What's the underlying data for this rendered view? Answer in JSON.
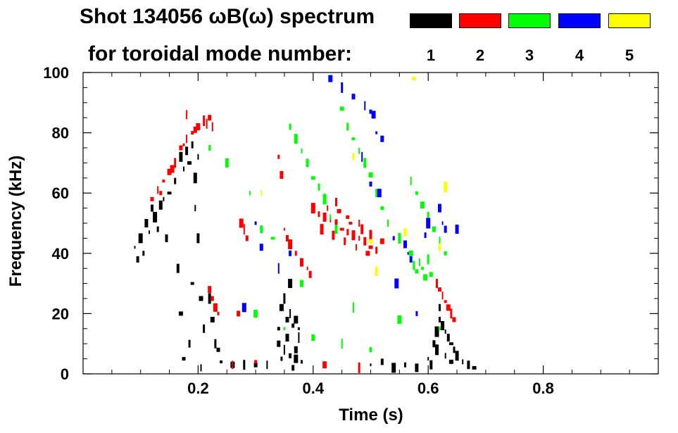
{
  "title": {
    "line1": "Shot 134056 ωB(ω) spectrum",
    "line2": "for toroidal mode number:"
  },
  "legend": [
    {
      "label": "1",
      "color": "#000000"
    },
    {
      "label": "2",
      "color": "#ff0000"
    },
    {
      "label": "3",
      "color": "#00ff00"
    },
    {
      "label": "4",
      "color": "#0000ff"
    },
    {
      "label": "5",
      "color": "#ffff00"
    }
  ],
  "chart_data": {
    "type": "scatter",
    "title": "Shot 134056 ωB(ω) spectrum",
    "xlabel": "Time (s)",
    "ylabel": "Frequency (kHz)",
    "xlim": [
      0.0,
      1.0
    ],
    "ylim": [
      0,
      100
    ],
    "x_ticks": [
      0.2,
      0.4,
      0.6,
      0.8
    ],
    "x_tick_labels": [
      "0.2",
      "0.4",
      "0.6",
      "0.8"
    ],
    "y_ticks": [
      0,
      20,
      40,
      60,
      80,
      100
    ],
    "y_tick_labels": [
      "0",
      "20",
      "40",
      "60",
      "80",
      "100"
    ],
    "series": [
      {
        "name": "n=1",
        "color": "#000000",
        "points": [
          [
            0.09,
            42
          ],
          [
            0.095,
            38
          ],
          [
            0.1,
            45
          ],
          [
            0.105,
            40
          ],
          [
            0.11,
            50
          ],
          [
            0.115,
            47
          ],
          [
            0.12,
            55
          ],
          [
            0.125,
            52
          ],
          [
            0.13,
            48
          ],
          [
            0.135,
            56
          ],
          [
            0.14,
            58
          ],
          [
            0.145,
            45
          ],
          [
            0.15,
            60
          ],
          [
            0.16,
            64
          ],
          [
            0.17,
            72
          ],
          [
            0.175,
            68
          ],
          [
            0.18,
            74
          ],
          [
            0.185,
            70
          ],
          [
            0.19,
            76
          ],
          [
            0.195,
            65
          ],
          [
            0.2,
            72
          ],
          [
            0.165,
            35
          ],
          [
            0.17,
            20
          ],
          [
            0.185,
            10
          ],
          [
            0.19,
            30
          ],
          [
            0.195,
            55
          ],
          [
            0.2,
            45
          ],
          [
            0.205,
            25
          ],
          [
            0.21,
            15
          ],
          [
            0.175,
            5
          ],
          [
            0.205,
            2
          ],
          [
            0.22,
            25
          ],
          [
            0.225,
            18
          ],
          [
            0.23,
            10
          ],
          [
            0.235,
            8
          ],
          [
            0.23,
            22
          ],
          [
            0.24,
            4
          ],
          [
            0.26,
            3
          ],
          [
            0.28,
            3
          ],
          [
            0.3,
            3
          ],
          [
            0.32,
            3
          ],
          [
            0.34,
            15
          ],
          [
            0.345,
            22
          ],
          [
            0.35,
            25
          ],
          [
            0.355,
            18
          ],
          [
            0.36,
            20
          ],
          [
            0.365,
            16
          ],
          [
            0.37,
            18
          ],
          [
            0.375,
            15
          ],
          [
            0.34,
            10
          ],
          [
            0.35,
            8
          ],
          [
            0.36,
            6
          ],
          [
            0.37,
            5
          ],
          [
            0.38,
            4
          ],
          [
            0.37,
            8
          ],
          [
            0.375,
            12
          ],
          [
            0.365,
            2
          ],
          [
            0.36,
            30
          ],
          [
            0.345,
            5
          ],
          [
            0.355,
            12
          ],
          [
            0.5,
            3
          ],
          [
            0.52,
            4
          ],
          [
            0.54,
            2
          ],
          [
            0.56,
            3
          ],
          [
            0.58,
            2
          ],
          [
            0.6,
            5
          ],
          [
            0.61,
            10
          ],
          [
            0.615,
            14
          ],
          [
            0.62,
            18
          ],
          [
            0.625,
            16
          ],
          [
            0.63,
            14
          ],
          [
            0.635,
            12
          ],
          [
            0.64,
            10
          ],
          [
            0.645,
            8
          ],
          [
            0.65,
            6
          ],
          [
            0.66,
            4
          ],
          [
            0.67,
            3
          ],
          [
            0.68,
            2
          ],
          [
            0.62,
            22
          ],
          [
            0.615,
            8
          ],
          [
            0.63,
            6
          ],
          [
            0.605,
            3
          ],
          [
            0.64,
            4
          ]
        ]
      },
      {
        "name": "n=2",
        "color": "#ff0000",
        "points": [
          [
            0.12,
            58
          ],
          [
            0.13,
            61
          ],
          [
            0.14,
            64
          ],
          [
            0.15,
            67
          ],
          [
            0.16,
            70
          ],
          [
            0.17,
            75
          ],
          [
            0.18,
            78
          ],
          [
            0.19,
            80
          ],
          [
            0.2,
            82
          ],
          [
            0.21,
            84
          ],
          [
            0.22,
            85
          ],
          [
            0.225,
            82
          ],
          [
            0.135,
            60
          ],
          [
            0.155,
            68
          ],
          [
            0.175,
            76
          ],
          [
            0.195,
            81
          ],
          [
            0.215,
            83
          ],
          [
            0.225,
            25
          ],
          [
            0.23,
            22
          ],
          [
            0.235,
            20
          ],
          [
            0.22,
            28
          ],
          [
            0.28,
            48
          ],
          [
            0.285,
            45
          ],
          [
            0.275,
            50
          ],
          [
            0.34,
            72
          ],
          [
            0.345,
            66
          ],
          [
            0.35,
            48
          ],
          [
            0.355,
            45
          ],
          [
            0.36,
            43
          ],
          [
            0.37,
            40
          ],
          [
            0.38,
            37
          ],
          [
            0.39,
            35
          ],
          [
            0.395,
            33
          ],
          [
            0.4,
            55
          ],
          [
            0.41,
            53
          ],
          [
            0.42,
            52
          ],
          [
            0.43,
            51
          ],
          [
            0.44,
            50
          ],
          [
            0.45,
            48
          ],
          [
            0.46,
            47
          ],
          [
            0.47,
            46
          ],
          [
            0.48,
            45
          ],
          [
            0.49,
            44
          ],
          [
            0.5,
            42
          ],
          [
            0.51,
            41
          ],
          [
            0.415,
            48
          ],
          [
            0.425,
            55
          ],
          [
            0.435,
            46
          ],
          [
            0.445,
            54
          ],
          [
            0.455,
            44
          ],
          [
            0.465,
            50
          ],
          [
            0.475,
            42
          ],
          [
            0.485,
            48
          ],
          [
            0.495,
            40
          ],
          [
            0.44,
            57
          ],
          [
            0.46,
            52
          ],
          [
            0.48,
            50
          ],
          [
            0.5,
            46
          ],
          [
            0.52,
            44
          ],
          [
            0.615,
            30
          ],
          [
            0.62,
            28
          ],
          [
            0.625,
            26
          ],
          [
            0.63,
            24
          ],
          [
            0.635,
            22
          ],
          [
            0.64,
            20
          ],
          [
            0.645,
            18
          ],
          [
            0.26,
            3
          ],
          [
            0.3,
            4
          ],
          [
            0.42,
            3
          ],
          [
            0.48,
            2
          ],
          [
            0.27,
            20
          ],
          [
            0.18,
            86
          ]
        ]
      },
      {
        "name": "n=3",
        "color": "#00ff00",
        "points": [
          [
            0.22,
            75
          ],
          [
            0.25,
            70
          ],
          [
            0.29,
            60
          ],
          [
            0.31,
            48
          ],
          [
            0.33,
            45
          ],
          [
            0.36,
            82
          ],
          [
            0.37,
            78
          ],
          [
            0.38,
            74
          ],
          [
            0.39,
            70
          ],
          [
            0.4,
            65
          ],
          [
            0.41,
            62
          ],
          [
            0.42,
            58
          ],
          [
            0.43,
            52
          ],
          [
            0.44,
            48
          ],
          [
            0.45,
            88
          ],
          [
            0.46,
            82
          ],
          [
            0.47,
            78
          ],
          [
            0.48,
            74
          ],
          [
            0.49,
            70
          ],
          [
            0.5,
            66
          ],
          [
            0.51,
            60
          ],
          [
            0.52,
            55
          ],
          [
            0.53,
            50
          ],
          [
            0.55,
            45
          ],
          [
            0.57,
            40
          ],
          [
            0.575,
            36
          ],
          [
            0.58,
            34
          ],
          [
            0.585,
            37
          ],
          [
            0.59,
            35
          ],
          [
            0.595,
            32
          ],
          [
            0.6,
            38
          ],
          [
            0.605,
            33
          ],
          [
            0.57,
            64
          ],
          [
            0.58,
            60
          ],
          [
            0.59,
            56
          ],
          [
            0.6,
            52
          ],
          [
            0.61,
            48
          ],
          [
            0.62,
            44
          ],
          [
            0.63,
            40
          ],
          [
            0.3,
            20
          ],
          [
            0.35,
            15
          ],
          [
            0.4,
            12
          ],
          [
            0.45,
            10
          ],
          [
            0.5,
            8
          ],
          [
            0.55,
            18
          ],
          [
            0.62,
            15
          ],
          [
            0.38,
            30
          ],
          [
            0.47,
            22
          ]
        ]
      },
      {
        "name": "n=4",
        "color": "#0000ff",
        "points": [
          [
            0.43,
            98
          ],
          [
            0.45,
            95
          ],
          [
            0.47,
            92
          ],
          [
            0.49,
            89
          ],
          [
            0.5,
            87
          ],
          [
            0.505,
            86
          ],
          [
            0.51,
            80
          ],
          [
            0.52,
            78
          ],
          [
            0.485,
            72
          ],
          [
            0.5,
            63
          ],
          [
            0.515,
            60
          ],
          [
            0.3,
            50
          ],
          [
            0.31,
            42
          ],
          [
            0.34,
            35
          ],
          [
            0.36,
            40
          ],
          [
            0.28,
            22
          ],
          [
            0.54,
            45
          ],
          [
            0.56,
            43
          ],
          [
            0.565,
            40
          ],
          [
            0.57,
            38
          ],
          [
            0.545,
            30
          ],
          [
            0.58,
            20
          ],
          [
            0.62,
            55
          ],
          [
            0.625,
            50
          ],
          [
            0.63,
            48
          ],
          [
            0.6,
            50
          ],
          [
            0.595,
            46
          ],
          [
            0.65,
            48
          ]
        ]
      },
      {
        "name": "n=5",
        "color": "#ffff00",
        "points": [
          [
            0.56,
            47
          ],
          [
            0.575,
            98
          ],
          [
            0.47,
            72
          ],
          [
            0.63,
            62
          ],
          [
            0.31,
            60
          ],
          [
            0.51,
            34
          ],
          [
            0.5,
            44
          ],
          [
            0.62,
            42
          ]
        ]
      }
    ]
  }
}
